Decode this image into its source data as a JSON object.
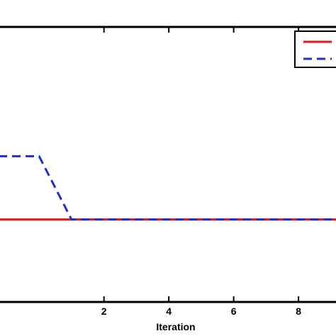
{
  "chart_data": {
    "type": "line",
    "title": "",
    "xlabel": "Iteration",
    "ylabel": "",
    "xlim": [
      -1.25,
      9.2
    ],
    "ylim": [
      0,
      1
    ],
    "x_ticks": [
      2,
      4,
      6,
      8
    ],
    "x_tick_labels": [
      "2",
      "4",
      "6",
      "8"
    ],
    "grid": false,
    "legend": {
      "placement": "top-right",
      "entries": [
        "",
        ""
      ]
    },
    "series": [
      {
        "color": "#e8141c",
        "style": "solid",
        "x": [
          -1.25,
          9.2
        ],
        "y": [
          0.3,
          0.3
        ]
      },
      {
        "color": "#1c2fd9",
        "style": "dashed",
        "x": [
          -1.25,
          0,
          1,
          9.2
        ],
        "y": [
          0.53,
          0.53,
          0.3,
          0.3
        ]
      }
    ]
  }
}
